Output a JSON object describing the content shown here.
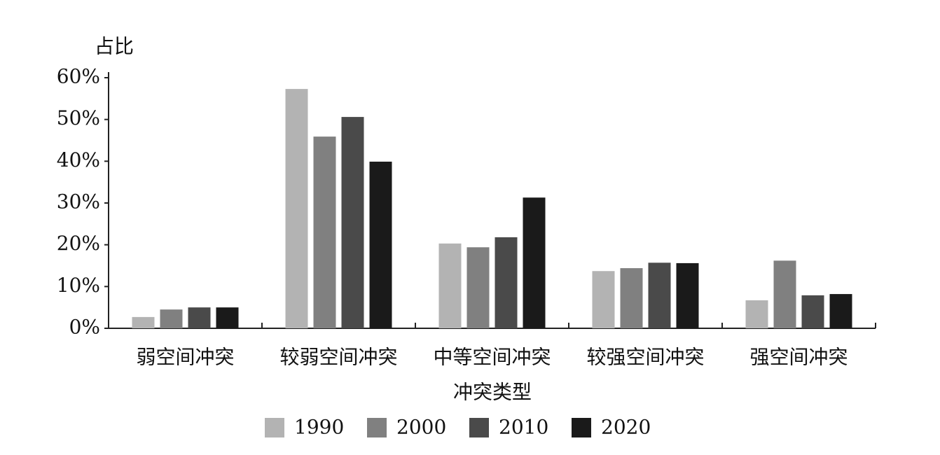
{
  "chart_data": {
    "type": "bar",
    "y_label": "占比",
    "x_label": "冲突类型",
    "categories": [
      "弱空间冲突",
      "较弱空间冲突",
      "中等空间冲突",
      "较强空间冲突",
      "强空间冲突"
    ],
    "series": [
      {
        "name": "1990",
        "color": "#b3b3b3",
        "values": [
          2.7,
          57.3,
          20.3,
          13.7,
          6.7
        ]
      },
      {
        "name": "2000",
        "color": "#808080",
        "values": [
          4.5,
          45.9,
          19.4,
          14.4,
          16.2
        ]
      },
      {
        "name": "2010",
        "color": "#4a4a4a",
        "values": [
          5.0,
          50.6,
          21.8,
          15.7,
          7.9
        ]
      },
      {
        "name": "2020",
        "color": "#1a1a1a",
        "values": [
          5.0,
          39.9,
          31.3,
          15.6,
          8.2
        ]
      }
    ],
    "ylim": [
      0,
      60
    ],
    "yticks": [
      {
        "value": 0,
        "label": "0%"
      },
      {
        "value": 10,
        "label": "10%"
      },
      {
        "value": 20,
        "label": "20%"
      },
      {
        "value": 30,
        "label": "30%"
      },
      {
        "value": 40,
        "label": "40%"
      },
      {
        "value": 50,
        "label": "50%"
      },
      {
        "value": 60,
        "label": "60%"
      }
    ],
    "grid": false,
    "legend": "bottom"
  }
}
